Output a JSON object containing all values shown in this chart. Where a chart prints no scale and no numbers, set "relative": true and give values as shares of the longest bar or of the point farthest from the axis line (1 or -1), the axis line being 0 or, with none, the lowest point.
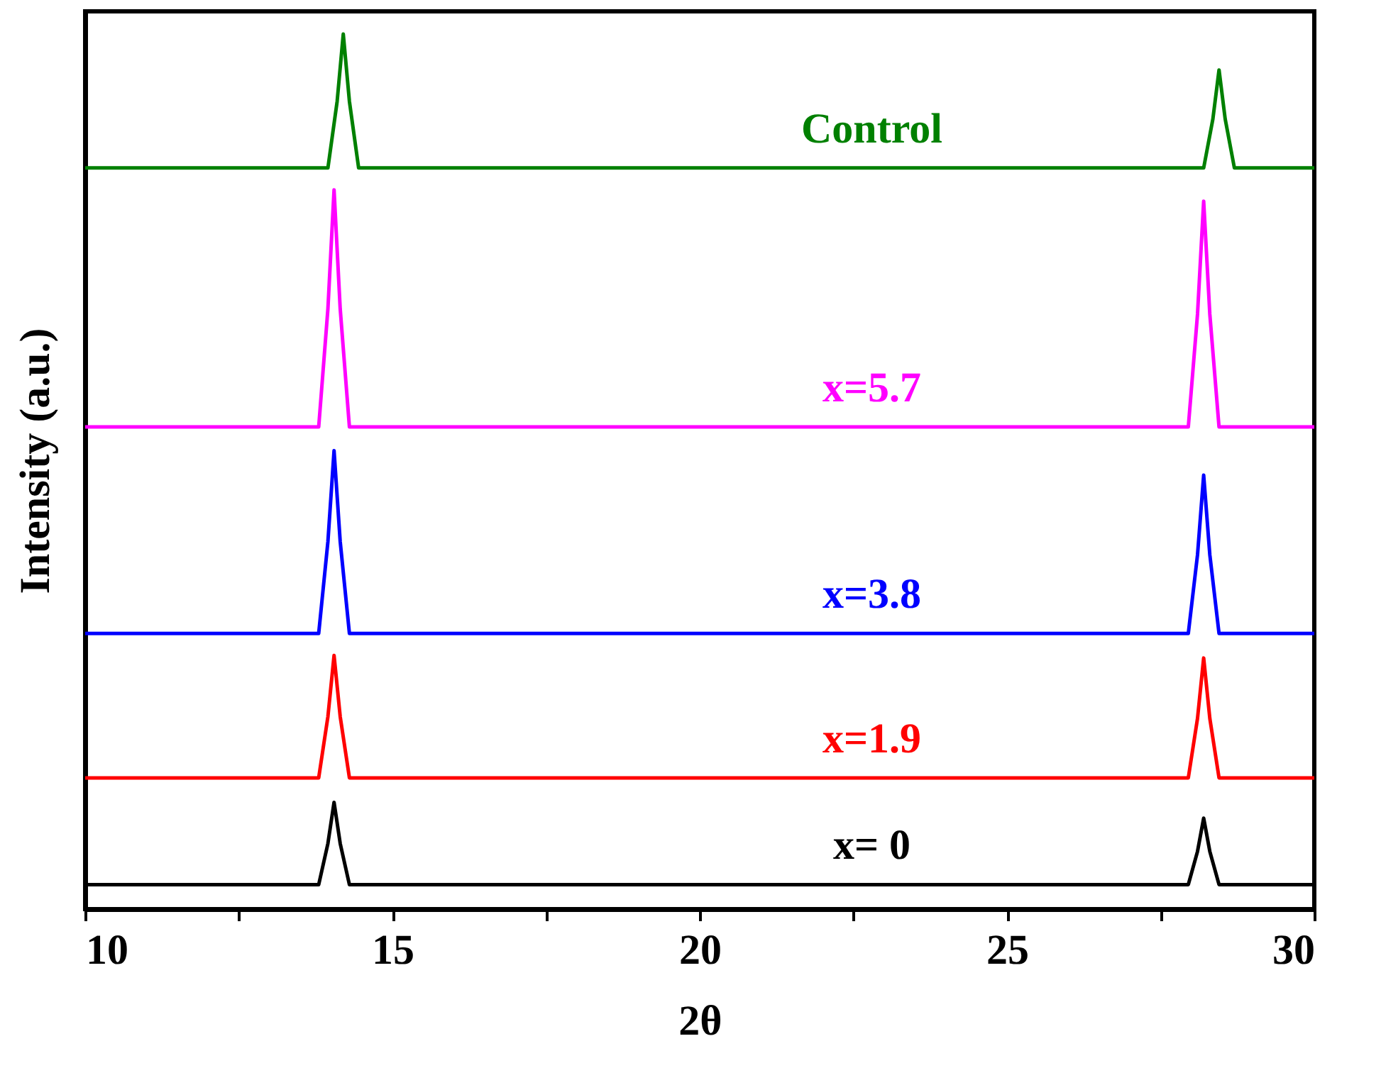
{
  "chart_data": {
    "type": "line",
    "relative": true,
    "xlabel": "2θ",
    "ylabel": "Intensity (a.u.)",
    "xlim": [
      10,
      30
    ],
    "xticks": [
      10,
      {
        "value": 12.5,
        "label": null
      },
      15,
      {
        "value": 17.5,
        "label": null
      },
      20,
      {
        "value": 22.5,
        "label": null
      },
      25,
      {
        "value": 27.5,
        "label": null
      },
      30
    ],
    "x": [
      10,
      13.8,
      13.95,
      14.05,
      14.15,
      14.3,
      27.95,
      28.1,
      28.2,
      28.3,
      28.45,
      30
    ],
    "grid": false,
    "line_style": "solid",
    "series": [
      {
        "name": "x= 0",
        "color": "#000000",
        "values": [
          0.028,
          0.028,
          0.075,
          0.122,
          0.075,
          0.028,
          0.028,
          0.066,
          0.104,
          0.066,
          0.028,
          0.028
        ]
      },
      {
        "name": "x=1.9",
        "color": "#ff0000",
        "values": [
          0.15,
          0.15,
          0.22,
          0.29,
          0.22,
          0.15,
          0.15,
          0.218,
          0.287,
          0.218,
          0.15,
          0.15
        ]
      },
      {
        "name": "x=3.8",
        "color": "#0000ff",
        "values": [
          0.315,
          0.315,
          0.42,
          0.524,
          0.42,
          0.315,
          0.315,
          0.405,
          0.496,
          0.405,
          0.315,
          0.315
        ]
      },
      {
        "name": "x=5.7",
        "color": "#ff00ff",
        "values": [
          0.551,
          0.551,
          0.686,
          0.822,
          0.686,
          0.551,
          0.551,
          0.68,
          0.809,
          0.68,
          0.551,
          0.551
        ]
      },
      {
        "name": "Control",
        "color": "#008000",
        "x": [
          10,
          13.95,
          14.1,
          14.2,
          14.3,
          14.45,
          28.2,
          28.35,
          28.45,
          28.55,
          28.7,
          30
        ],
        "values": [
          0.847,
          0.847,
          0.923,
          1.0,
          0.923,
          0.847,
          0.847,
          0.903,
          0.959,
          0.903,
          0.847,
          0.847
        ]
      }
    ]
  }
}
